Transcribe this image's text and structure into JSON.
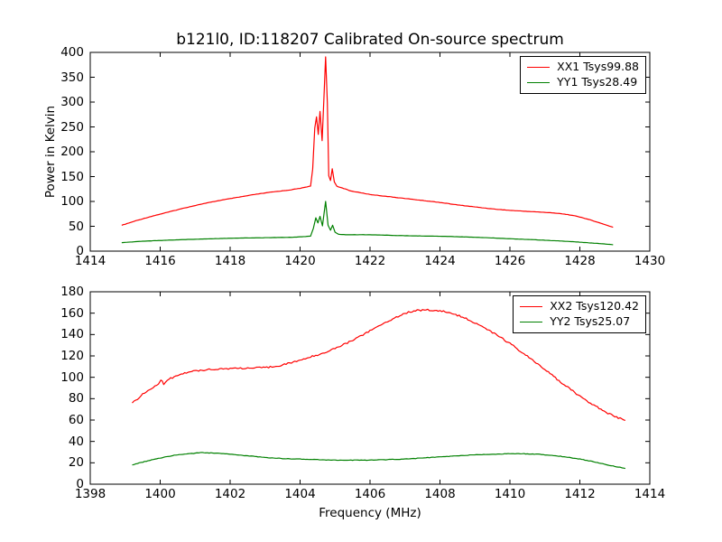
{
  "figure": {
    "title": "b121l0, ID:118207 Calibrated On-source spectrum",
    "background": "#ffffff",
    "frame_color": "#000000"
  },
  "chart_data": [
    {
      "id": "top-spectrum",
      "type": "line",
      "xlabel": "",
      "ylabel": "Power in Kelvin",
      "xlim": [
        1414,
        1430
      ],
      "ylim": [
        0,
        400
      ],
      "xticks": [
        1414,
        1416,
        1418,
        1420,
        1422,
        1424,
        1426,
        1428,
        1430
      ],
      "yticks": [
        0,
        50,
        100,
        150,
        200,
        250,
        300,
        350,
        400
      ],
      "grid": false,
      "legend_position": "upper right",
      "series": [
        {
          "name": "XX1",
          "label": "XX1 Tsys99.88",
          "color": "#ff0000",
          "noise": 0.3,
          "x": [
            1414.9,
            1415.3,
            1415.75,
            1416.2,
            1416.7,
            1417.2,
            1417.7,
            1418.2,
            1418.7,
            1419.2,
            1419.7,
            1420.05,
            1420.3,
            1420.36,
            1420.42,
            1420.47,
            1420.52,
            1420.57,
            1420.63,
            1420.68,
            1420.73,
            1420.78,
            1420.82,
            1420.87,
            1420.92,
            1420.98,
            1421.05,
            1421.15,
            1421.3,
            1421.45,
            1421.7,
            1422.0,
            1422.5,
            1423.0,
            1423.5,
            1424.0,
            1424.5,
            1425.0,
            1425.5,
            1426.0,
            1426.5,
            1427.0,
            1427.4,
            1427.8,
            1428.2,
            1428.6,
            1428.95
          ],
          "y": [
            52,
            61,
            70,
            78,
            87,
            95,
            102,
            108,
            114,
            119,
            123,
            127,
            131,
            165,
            248,
            270,
            235,
            281,
            222,
            305,
            391,
            298,
            152,
            142,
            166,
            139,
            131,
            128,
            125,
            121,
            118,
            114,
            110,
            106,
            102,
            98,
            93,
            89,
            85,
            82,
            80,
            78,
            76,
            72,
            65,
            56,
            48
          ]
        },
        {
          "name": "YY1",
          "label": "YY1 Tsys28.49",
          "color": "#008000",
          "noise": 0.2,
          "x": [
            1414.9,
            1415.5,
            1416.2,
            1417.0,
            1418.0,
            1419.0,
            1419.8,
            1420.3,
            1420.38,
            1420.45,
            1420.51,
            1420.57,
            1420.64,
            1420.73,
            1420.8,
            1420.87,
            1420.93,
            1421.0,
            1421.1,
            1421.3,
            1422.0,
            1423.0,
            1424.0,
            1425.0,
            1426.0,
            1427.0,
            1427.8,
            1428.4,
            1428.95
          ],
          "y": [
            17,
            20,
            22,
            24,
            26,
            27,
            28,
            30,
            46,
            67,
            57,
            70,
            51,
            100,
            52,
            42,
            52,
            38,
            34,
            33,
            33,
            31,
            30,
            28,
            25,
            22,
            19,
            16,
            13
          ]
        }
      ]
    },
    {
      "id": "bottom-spectrum",
      "type": "line",
      "xlabel": "Frequency (MHz)",
      "ylabel": "",
      "xlim": [
        1398,
        1414
      ],
      "ylim": [
        0,
        180
      ],
      "xticks": [
        1398,
        1400,
        1402,
        1404,
        1406,
        1408,
        1410,
        1412,
        1414
      ],
      "yticks": [
        0,
        20,
        40,
        60,
        80,
        100,
        120,
        140,
        160,
        180
      ],
      "grid": false,
      "legend_position": "upper right",
      "series": [
        {
          "name": "XX2",
          "label": "XX2 Tsys120.42",
          "color": "#ff0000",
          "noise": 0.8,
          "x": [
            1399.2,
            1399.5,
            1399.8,
            1399.95,
            1400.02,
            1400.1,
            1400.3,
            1400.6,
            1401.0,
            1401.4,
            1401.8,
            1402.2,
            1402.6,
            1403.0,
            1403.4,
            1403.8,
            1404.2,
            1404.6,
            1405.0,
            1405.4,
            1405.8,
            1406.2,
            1406.6,
            1407.0,
            1407.3,
            1407.6,
            1407.9,
            1408.2,
            1408.6,
            1409.0,
            1409.4,
            1409.8,
            1410.2,
            1410.6,
            1411.0,
            1411.4,
            1411.8,
            1412.2,
            1412.6,
            1413.0,
            1413.3
          ],
          "y": [
            76,
            84,
            91,
            93,
            98,
            94,
            99,
            103,
            106,
            107.5,
            108,
            108.5,
            108.5,
            109,
            111,
            114,
            118,
            122,
            127,
            133,
            140,
            147,
            154,
            160,
            162.5,
            163,
            162.5,
            161,
            157,
            151,
            144,
            136,
            127,
            117,
            107,
            97,
            87,
            78,
            70,
            63,
            60
          ]
        },
        {
          "name": "YY2",
          "label": "YY2 Tsys25.07",
          "color": "#008000",
          "noise": 0.25,
          "x": [
            1399.2,
            1399.6,
            1400.0,
            1400.4,
            1400.8,
            1401.2,
            1401.6,
            1402.0,
            1402.5,
            1403.0,
            1403.5,
            1404.0,
            1404.5,
            1405.0,
            1405.5,
            1406.0,
            1406.5,
            1407.0,
            1407.5,
            1408.0,
            1408.5,
            1409.0,
            1409.5,
            1410.0,
            1410.4,
            1410.8,
            1411.2,
            1411.6,
            1412.0,
            1412.4,
            1412.8,
            1413.1,
            1413.3
          ],
          "y": [
            18,
            21.5,
            24.5,
            27,
            28.5,
            29.5,
            29,
            28,
            26.5,
            25,
            24,
            23.5,
            23,
            22.5,
            22.5,
            22.5,
            23,
            23.5,
            24.5,
            25.5,
            26.5,
            27.5,
            28,
            28.5,
            28.5,
            28,
            27,
            25.5,
            23.5,
            21,
            18,
            16,
            15
          ]
        }
      ]
    }
  ]
}
